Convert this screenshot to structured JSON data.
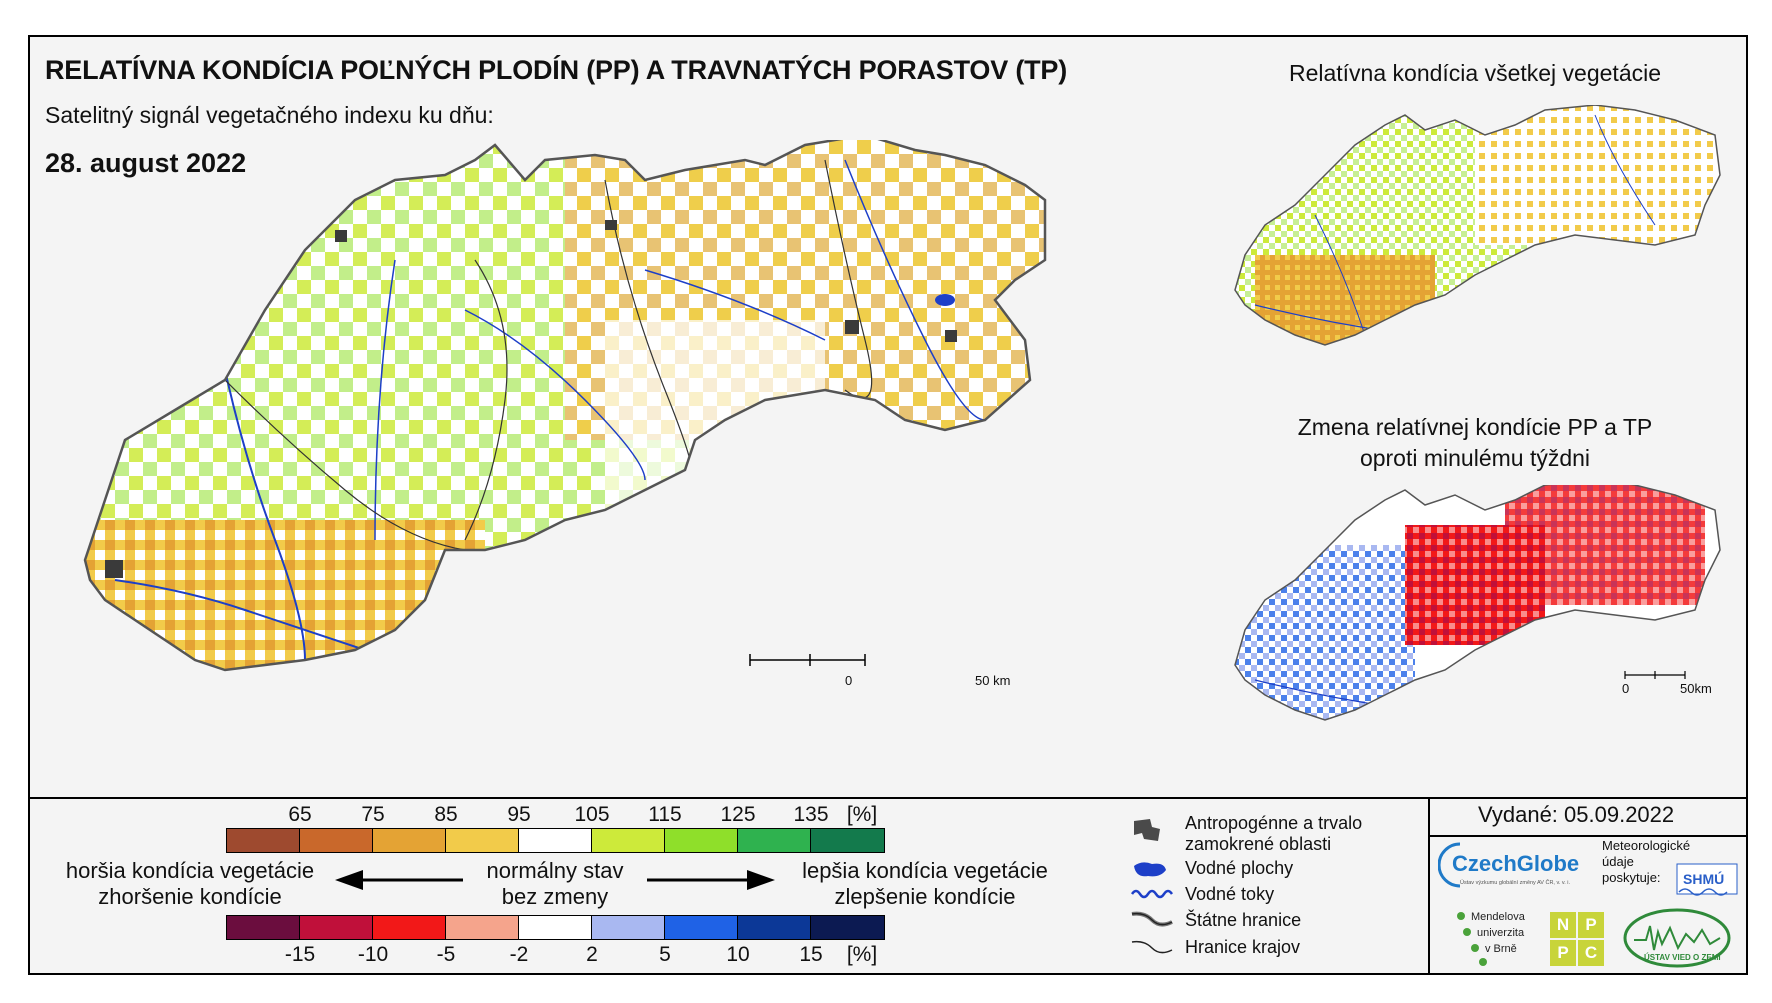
{
  "title": "RELATÍVNA KONDÍCIA POĽNÝCH PLODÍN (PP) A TRAVNATÝCH PORASTOV (TP)",
  "subtitle": "Satelitný signál vegetačného indexu ku dňu:",
  "date": "28. august 2022",
  "inset_top_title": "Relatívna kondícia všetkej vegetácie",
  "inset_bottom_title_line1": "Zmena relatívnej kondície PP a TP",
  "inset_bottom_title_line2": "oproti minulému týždni",
  "scalebar_main": {
    "start": "0",
    "end": "50 km"
  },
  "scalebar_inset": {
    "start": "0",
    "end": "50km"
  },
  "condition_scale": {
    "ticks": [
      "65",
      "75",
      "85",
      "95",
      "105",
      "115",
      "125",
      "135",
      "[%]"
    ],
    "colors": [
      "#9e4a2f",
      "#c9682b",
      "#e4a334",
      "#f2cb4a",
      "#ffffff",
      "#cdea3a",
      "#8fdf2a",
      "#2fb24f",
      "#137a4c"
    ]
  },
  "change_scale": {
    "ticks": [
      "-15",
      "-10",
      "-5",
      "-2",
      "2",
      "5",
      "10",
      "15",
      "[%]"
    ],
    "colors": [
      "#6b0d3e",
      "#c0103a",
      "#f21818",
      "#f5a48c",
      "#ffffff",
      "#a9b8f1",
      "#1f62e6",
      "#0c3897",
      "#0c1a52"
    ]
  },
  "labels": {
    "worse_line1": "horšia kondícia vegetácie",
    "worse_line2": "zhoršenie kondície",
    "normal_line1": "normálny stav",
    "normal_line2": "bez zmeny",
    "better_line1": "lepšia kondícia vegetácie",
    "better_line2": "zlepšenie kondície"
  },
  "legend": {
    "anthropogenic_line1": "Antropogénne a trvalo",
    "anthropogenic_line2": "zamokrené oblasti",
    "water_bodies": "Vodné plochy",
    "rivers": "Vodné toky",
    "state_border": "Štátne hranice",
    "region_border": "Hranice krajov"
  },
  "issued": "Vydané: 05.09.2022",
  "logos": {
    "czechglobe": "CzechGlobe",
    "czechglobe_sub": "Ústav výzkumu globální změny AV ČR, v. v. i.",
    "meteo_line1": "Meteorologické",
    "meteo_line2": "údaje",
    "meteo_line3": "poskytuje:",
    "shmu": "SHMÚ",
    "mendel_line1": "Mendelova",
    "mendel_line2": "univerzita",
    "mendel_line3": "v Brně",
    "nppc": [
      "N",
      "P",
      "P",
      "C"
    ],
    "uvz": "ÚSTAV VIED O ZEMI"
  }
}
